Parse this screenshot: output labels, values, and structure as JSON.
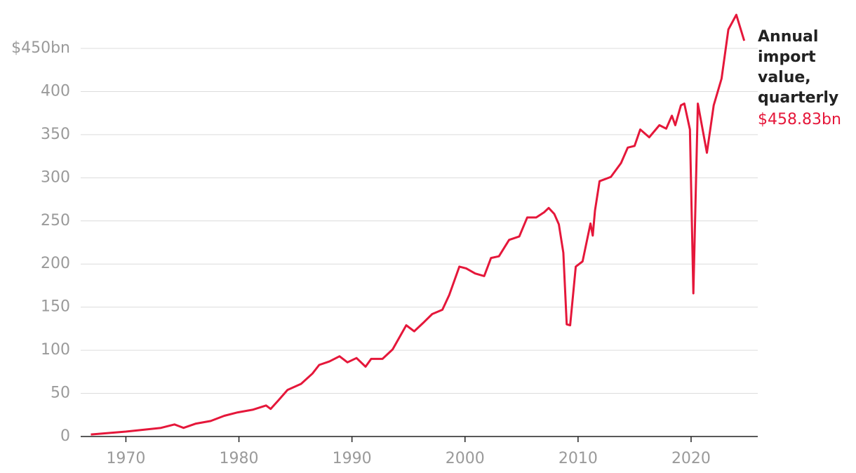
{
  "chart_data": {
    "type": "line",
    "xlim": [
      1966,
      2025.9
    ],
    "ylim": [
      0,
      450
    ],
    "xticks": [
      1970,
      1980,
      1990,
      2000,
      2010,
      2020
    ],
    "yticks": [
      0,
      50,
      100,
      150,
      200,
      250,
      300,
      350,
      400,
      {
        "value": 450,
        "label": "$450bn"
      }
    ],
    "grid": true,
    "series": [
      {
        "name": "Annual import value, quarterly",
        "color": "#e5173a",
        "end_value_label": "$458.83bn",
        "x": [
          1966.9,
          1970,
          1973.1,
          1974.3,
          1975.1,
          1976.2,
          1977.5,
          1978.7,
          1979.9,
          1981.2,
          1982.4,
          1982.8,
          1983.5,
          1984.3,
          1985.5,
          1986.5,
          1987.1,
          1988,
          1988.9,
          1989.6,
          1990.4,
          1991.2,
          1991.7,
          1992.7,
          1993.6,
          1994.8,
          1995.5,
          1996.4,
          1997.1,
          1998,
          1998.6,
          1999.5,
          2000.1,
          2000.9,
          2001.7,
          2002.3,
          2003,
          2003.9,
          2004.8,
          2005.5,
          2006.3,
          2007,
          2007.4,
          2007.9,
          2008.3,
          2008.7,
          2009,
          2009.3,
          2009.8,
          2010.4,
          2011.1,
          2011.3,
          2011.5,
          2011.9,
          2012.9,
          2013.8,
          2014.4,
          2015,
          2015.5,
          2016.3,
          2017.2,
          2017.8,
          2018.3,
          2018.6,
          2019.1,
          2019.4,
          2019.9,
          2020.2,
          2020.6,
          2021.4,
          2022,
          2022.7,
          2023.3,
          2024,
          2024.7
        ],
        "values": [
          2.4,
          5.7,
          10,
          14,
          10,
          15,
          18,
          24,
          28,
          31,
          36,
          32,
          42,
          54,
          61,
          73,
          83,
          87,
          93,
          86,
          91,
          81,
          90,
          90,
          101,
          129,
          122,
          133,
          142,
          147,
          164,
          197,
          195,
          189,
          186,
          207,
          209,
          228,
          232,
          254,
          254,
          260,
          265,
          258,
          246,
          213,
          130,
          129,
          197,
          203,
          247,
          233,
          262,
          296,
          301,
          317,
          335,
          337,
          356,
          347,
          361,
          357,
          372,
          361,
          384,
          386,
          356,
          166,
          386,
          329,
          384,
          415,
          472,
          489,
          458.83
        ]
      }
    ]
  }
}
